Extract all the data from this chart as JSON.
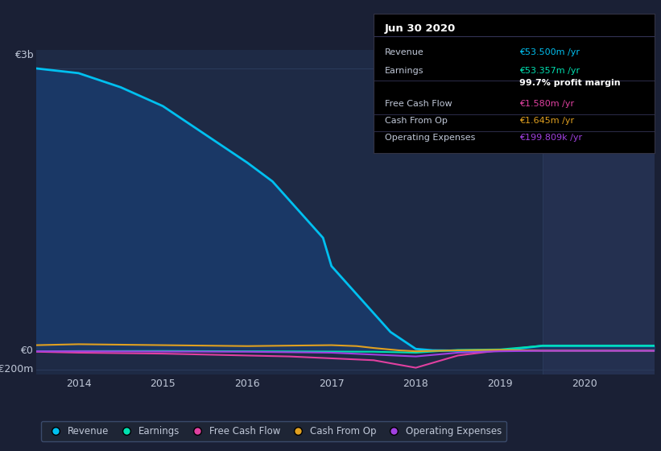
{
  "background_color": "#1a2035",
  "plot_bg_color": "#1e2a45",
  "forecast_bg_color": "#243050",
  "grid_color": "#2a3a5a",
  "text_color": "#c0c8d8",
  "title_color": "#ffffff",
  "xlim": [
    2013.5,
    2020.83
  ],
  "ylim": [
    -250000000,
    3200000000
  ],
  "ytick_labels": [
    "€0",
    "€3b"
  ],
  "extra_ytick_label": "-€200m",
  "xticks": [
    2014,
    2015,
    2016,
    2017,
    2018,
    2019,
    2020
  ],
  "forecast_start": 2019.5,
  "series": {
    "Revenue": {
      "color": "#00c0f0",
      "fill_color": "#1a3a6a",
      "x": [
        2013.5,
        2014.0,
        2014.5,
        2015.0,
        2015.5,
        2016.0,
        2016.3,
        2016.6,
        2016.9,
        2017.0,
        2017.2,
        2017.5,
        2017.7,
        2017.9,
        2018.0,
        2018.2,
        2018.5,
        2019.0,
        2019.5,
        2020.0,
        2020.83
      ],
      "y": [
        3000000000,
        2950000000,
        2800000000,
        2600000000,
        2300000000,
        2000000000,
        1800000000,
        1500000000,
        1200000000,
        900000000,
        700000000,
        400000000,
        200000000,
        80000000,
        20000000,
        5000000,
        2000000,
        1000000,
        53500000,
        53500000,
        53500000
      ]
    },
    "Earnings": {
      "color": "#00e0b0",
      "x": [
        2013.5,
        2014.0,
        2015.0,
        2016.0,
        2017.0,
        2017.5,
        2018.0,
        2018.5,
        2019.0,
        2019.5,
        2020.0,
        2020.83
      ],
      "y": [
        -5000000,
        -3000000,
        -2000000,
        -5000000,
        -8000000,
        -10000000,
        -20000000,
        10000000,
        15000000,
        53357000,
        53357000,
        53357000
      ]
    },
    "FreeCashFlow": {
      "color": "#e040a0",
      "x": [
        2013.5,
        2014.0,
        2015.0,
        2016.0,
        2016.5,
        2017.0,
        2017.5,
        2018.0,
        2018.5,
        2019.0,
        2019.5,
        2020.0,
        2020.83
      ],
      "y": [
        -10000000,
        -20000000,
        -30000000,
        -50000000,
        -60000000,
        -80000000,
        -100000000,
        -180000000,
        -50000000,
        5000000,
        1580000,
        1580000,
        1580000
      ]
    },
    "CashFromOp": {
      "color": "#e0a020",
      "x": [
        2013.5,
        2014.0,
        2015.0,
        2016.0,
        2016.5,
        2017.0,
        2017.3,
        2017.5,
        2017.8,
        2018.0,
        2018.5,
        2019.0,
        2019.5,
        2020.0,
        2020.83
      ],
      "y": [
        60000000,
        70000000,
        60000000,
        50000000,
        55000000,
        60000000,
        50000000,
        30000000,
        5000000,
        -5000000,
        5000000,
        10000000,
        1645000,
        1645000,
        1645000
      ]
    },
    "OperatingExpenses": {
      "color": "#a040e0",
      "x": [
        2013.5,
        2014.0,
        2015.0,
        2016.0,
        2017.0,
        2017.5,
        2018.0,
        2018.5,
        2019.0,
        2019.5,
        2020.0,
        2020.83
      ],
      "y": [
        -5000000,
        -5000000,
        -8000000,
        -10000000,
        -20000000,
        -40000000,
        -60000000,
        -20000000,
        -5000000,
        199809,
        199809,
        199809
      ]
    }
  },
  "info_box": {
    "date": "Jun 30 2020",
    "rows": [
      {
        "label": "Revenue",
        "value": "€53.500m /yr",
        "value_color": "#00c0f0",
        "label_color": "#c0c8d8"
      },
      {
        "label": "Earnings",
        "value": "€53.357m /yr",
        "value_color": "#00e0b0",
        "label_color": "#c0c8d8"
      },
      {
        "label": "",
        "value": "99.7% profit margin",
        "value_color": "#ffffff",
        "label_color": "#c0c8d8"
      },
      {
        "label": "Free Cash Flow",
        "value": "€1.580m /yr",
        "value_color": "#e040a0",
        "label_color": "#c0c8d8"
      },
      {
        "label": "Cash From Op",
        "value": "€1.645m /yr",
        "value_color": "#e0a020",
        "label_color": "#c0c8d8"
      },
      {
        "label": "Operating Expenses",
        "value": "€199.809k /yr",
        "value_color": "#a040e0",
        "label_color": "#c0c8d8"
      }
    ]
  },
  "legend": [
    {
      "label": "Revenue",
      "color": "#00c0f0"
    },
    {
      "label": "Earnings",
      "color": "#00e0b0"
    },
    {
      "label": "Free Cash Flow",
      "color": "#e040a0"
    },
    {
      "label": "Cash From Op",
      "color": "#e0a020"
    },
    {
      "label": "Operating Expenses",
      "color": "#a040e0"
    }
  ]
}
